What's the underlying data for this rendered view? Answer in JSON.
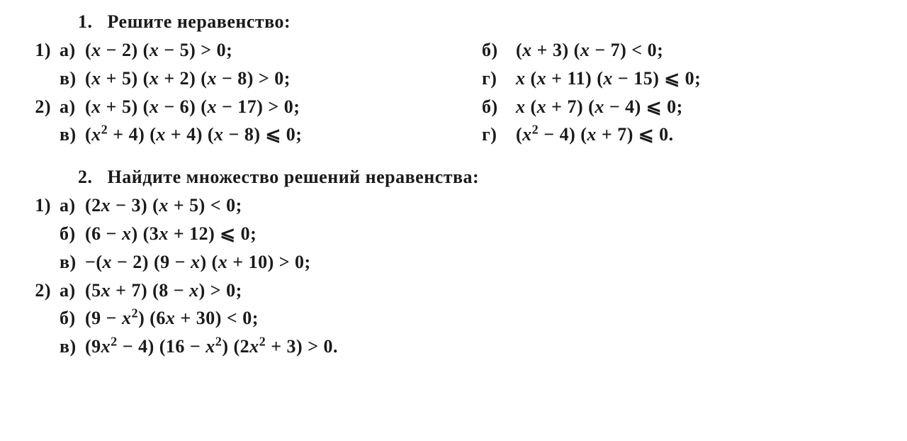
{
  "text_color": "#1a1a1a",
  "background_color": "#ffffff",
  "font_family": "Times New Roman",
  "font_weight": "bold",
  "font_size_pt": 20,
  "problem1": {
    "number": "1.",
    "title": "Решите неравенство:",
    "groups": [
      {
        "num": "1)",
        "rows": [
          {
            "left_label": "а)",
            "left": "(x − 2) (x − 5) > 0;",
            "right_label": "б)",
            "right": "(x + 3) (x − 7) < 0;"
          },
          {
            "left_label": "в)",
            "left": "(x + 5) (x + 2) (x − 8) > 0;",
            "right_label": "г)",
            "right": "x (x + 11) (x − 15) ⩽ 0;"
          }
        ]
      },
      {
        "num": "2)",
        "rows": [
          {
            "left_label": "а)",
            "left": "(x + 5) (x − 6) (x − 17) > 0;",
            "right_label": "б)",
            "right": "x (x + 7) (x − 4) ⩽ 0;"
          },
          {
            "left_label": "в)",
            "left": "(x² + 4) (x + 4) (x − 8) ⩽ 0;",
            "right_label": "г)",
            "right": "(x² − 4) (x + 7) ⩽ 0."
          }
        ]
      }
    ]
  },
  "problem2": {
    "number": "2.",
    "title": "Найдите множество решений неравенства:",
    "groups": [
      {
        "num": "1)",
        "rows": [
          {
            "label": "а)",
            "expr": "(2x − 3) (x + 5) < 0;"
          },
          {
            "label": "б)",
            "expr": "(6 − x) (3x + 12) ⩽ 0;"
          },
          {
            "label": "в)",
            "expr": "−(x − 2) (9 − x) (x + 10) > 0;"
          }
        ]
      },
      {
        "num": "2)",
        "rows": [
          {
            "label": "а)",
            "expr": "(5x + 7) (8 − x) > 0;"
          },
          {
            "label": "б)",
            "expr": "(9 − x²) (6x + 30) < 0;"
          },
          {
            "label": "в)",
            "expr": "(9x² − 4) (16 − x²) (2x² + 3) > 0."
          }
        ]
      }
    ]
  }
}
